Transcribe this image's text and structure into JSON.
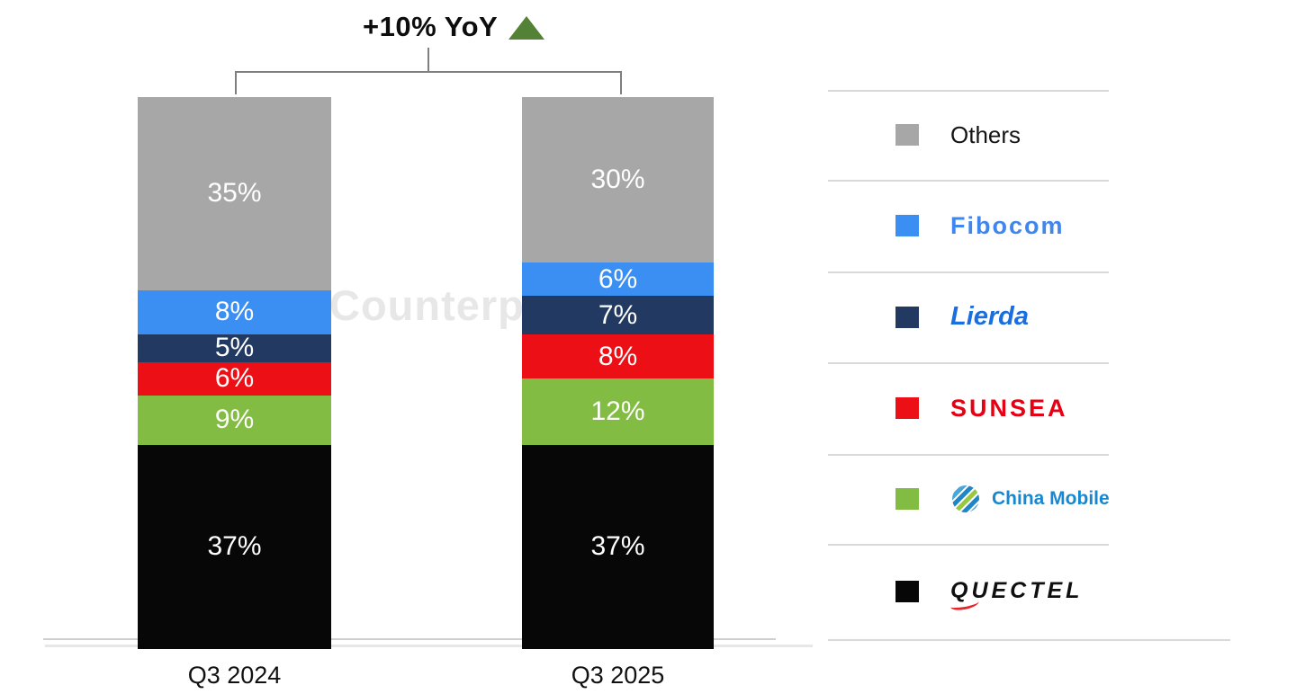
{
  "watermark": "Counterp",
  "chart_data": {
    "type": "bar",
    "stacked": true,
    "unit": "%",
    "title": "",
    "annotation": "+10% YoY",
    "annotation_icon": "up-triangle",
    "annotation_icon_color": "#538135",
    "categories": [
      "Q3 2024",
      "Q3 2025"
    ],
    "series_order": "bottom-to-top",
    "series": [
      {
        "name": "Quectel",
        "color": "#070707",
        "values": [
          37,
          37
        ]
      },
      {
        "name": "China Mobile",
        "color": "#82bc42",
        "values": [
          9,
          12
        ]
      },
      {
        "name": "Sunsea",
        "color": "#ec1016",
        "values": [
          6,
          8
        ]
      },
      {
        "name": "Lierda",
        "color": "#223a61",
        "values": [
          5,
          7
        ]
      },
      {
        "name": "Fibocom",
        "color": "#3b8ef2",
        "values": [
          8,
          6
        ]
      },
      {
        "name": "Others",
        "color": "#a7a7a7",
        "values": [
          35,
          30
        ]
      }
    ],
    "ylim": [
      0,
      100
    ],
    "grid": false,
    "legend_position": "right",
    "value_label_color": "#ffffff"
  },
  "legend": {
    "items": [
      {
        "label": "Others",
        "color": "#a7a7a7",
        "logo_color": "#141414"
      },
      {
        "label": "Fibocom",
        "color": "#3b8ef2",
        "logo_color": "#3f86ee"
      },
      {
        "label": "Lierda",
        "color": "#223a61",
        "logo_color": "#1a6fe0"
      },
      {
        "label": "SUNSEA",
        "color": "#ec1016",
        "logo_color": "#e60014"
      },
      {
        "label": "China Mobile",
        "color": "#82bc42",
        "logo_color": "#1788d0"
      },
      {
        "label": "QUECTEL",
        "color": "#070707",
        "logo_color": "#0f0f0f"
      }
    ]
  }
}
